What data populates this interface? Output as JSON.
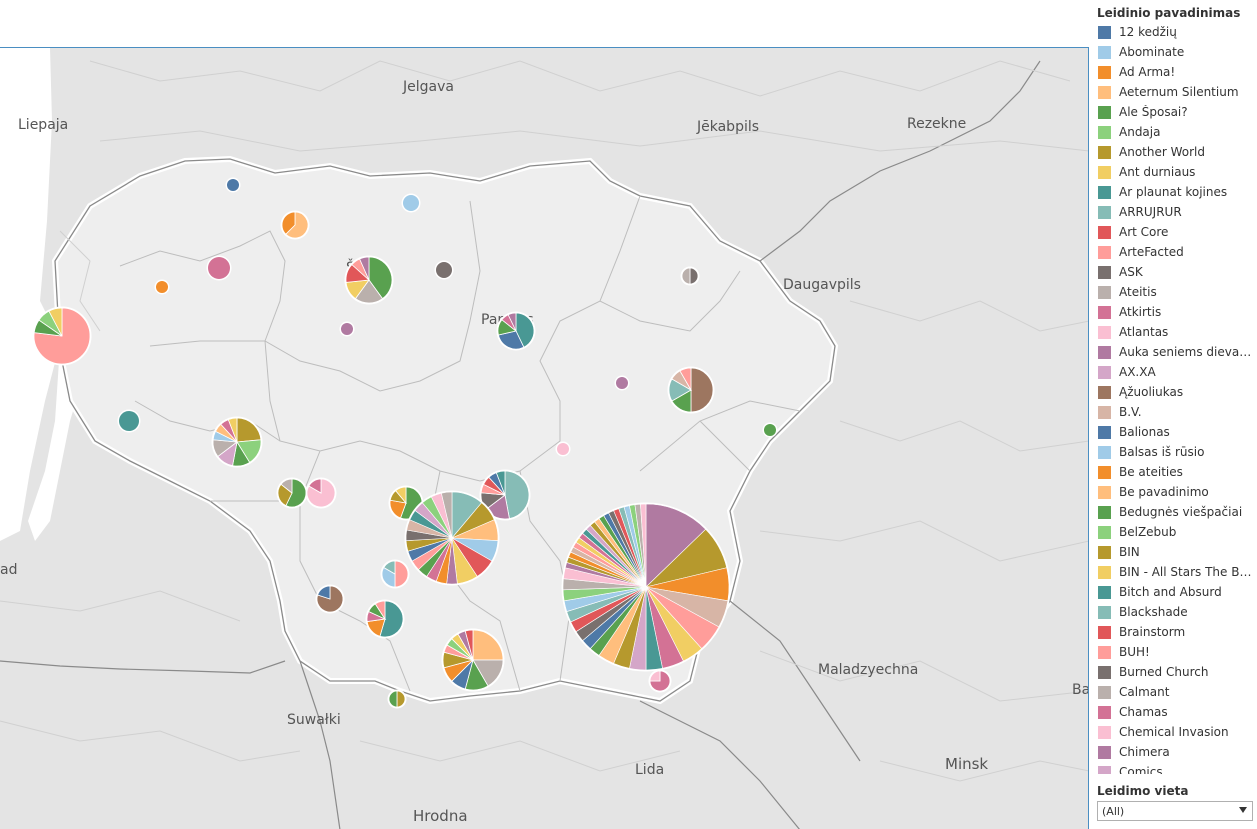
{
  "legend": {
    "title": "Leidinio pavadinimas",
    "items": [
      {
        "label": "12 kedžių",
        "color": "#4e79a7"
      },
      {
        "label": "Abominate",
        "color": "#a0cbe8"
      },
      {
        "label": "Ad Arma!",
        "color": "#f28e2b"
      },
      {
        "label": "Aeternum Silentium",
        "color": "#ffbe7d"
      },
      {
        "label": "Ale Šposai?",
        "color": "#59a14f"
      },
      {
        "label": "Andaja",
        "color": "#8cd17d"
      },
      {
        "label": "Another World",
        "color": "#b6992d"
      },
      {
        "label": "Ant durniaus",
        "color": "#f1ce63"
      },
      {
        "label": "Ar plaunat kojines",
        "color": "#499894"
      },
      {
        "label": "ARRUJRUR",
        "color": "#86bcb6"
      },
      {
        "label": "Art Core",
        "color": "#e15759"
      },
      {
        "label": "ArteFacted",
        "color": "#ff9d9a"
      },
      {
        "label": "ASK",
        "color": "#79706e"
      },
      {
        "label": "Ateitis",
        "color": "#bab0ac"
      },
      {
        "label": "Atkirtis",
        "color": "#d37295"
      },
      {
        "label": "Atlantas",
        "color": "#fabfd2"
      },
      {
        "label": "Auka seniems dievams",
        "color": "#b07aa1"
      },
      {
        "label": "AX.XA",
        "color": "#d4a6c8"
      },
      {
        "label": "Ąžuoliukas",
        "color": "#9d7660"
      },
      {
        "label": "B.V.",
        "color": "#d7b5a6"
      },
      {
        "label": "Balionas",
        "color": "#4e79a7"
      },
      {
        "label": "Balsas iš rūsio",
        "color": "#a0cbe8"
      },
      {
        "label": "Be ateities",
        "color": "#f28e2b"
      },
      {
        "label": "Be pavadinimo",
        "color": "#ffbe7d"
      },
      {
        "label": "Bedugnės viešpačiai",
        "color": "#59a14f"
      },
      {
        "label": "BelZebub",
        "color": "#8cd17d"
      },
      {
        "label": "BIN",
        "color": "#b6992d"
      },
      {
        "label": "BIN - All Stars The Best",
        "color": "#f1ce63"
      },
      {
        "label": "Bitch and Absurd",
        "color": "#499894"
      },
      {
        "label": "Blackshade",
        "color": "#86bcb6"
      },
      {
        "label": "Brainstorm",
        "color": "#e15759"
      },
      {
        "label": "BUH!",
        "color": "#ff9d9a"
      },
      {
        "label": "Burned Church",
        "color": "#79706e"
      },
      {
        "label": "Calmant",
        "color": "#bab0ac"
      },
      {
        "label": "Chamas",
        "color": "#d37295"
      },
      {
        "label": "Chemical Invasion",
        "color": "#fabfd2"
      },
      {
        "label": "Chimera",
        "color": "#b07aa1"
      },
      {
        "label": "Comics",
        "color": "#d4a6c8"
      }
    ]
  },
  "filter": {
    "title": "Leidimo vieta",
    "value": "(All)"
  },
  "map": {
    "labels": [
      {
        "text": "Jelgava"
      },
      {
        "text": "Liepaja"
      },
      {
        "text": "Jēkabpils"
      },
      {
        "text": "Rezekne"
      },
      {
        "text": "Daugavpils"
      },
      {
        "text": "Šiauliai (partly hidden)",
        "shown": "Š            i"
      },
      {
        "text": "Panevėžys (partly hidden)",
        "shown": "Pan         žys"
      },
      {
        "text": "Maladzyechna"
      },
      {
        "text": "Suwałki"
      },
      {
        "text": "Lida"
      },
      {
        "text": "Minsk"
      },
      {
        "text": "Hrodna"
      },
      {
        "text": "ad"
      },
      {
        "text": "Ba"
      }
    ]
  }
}
